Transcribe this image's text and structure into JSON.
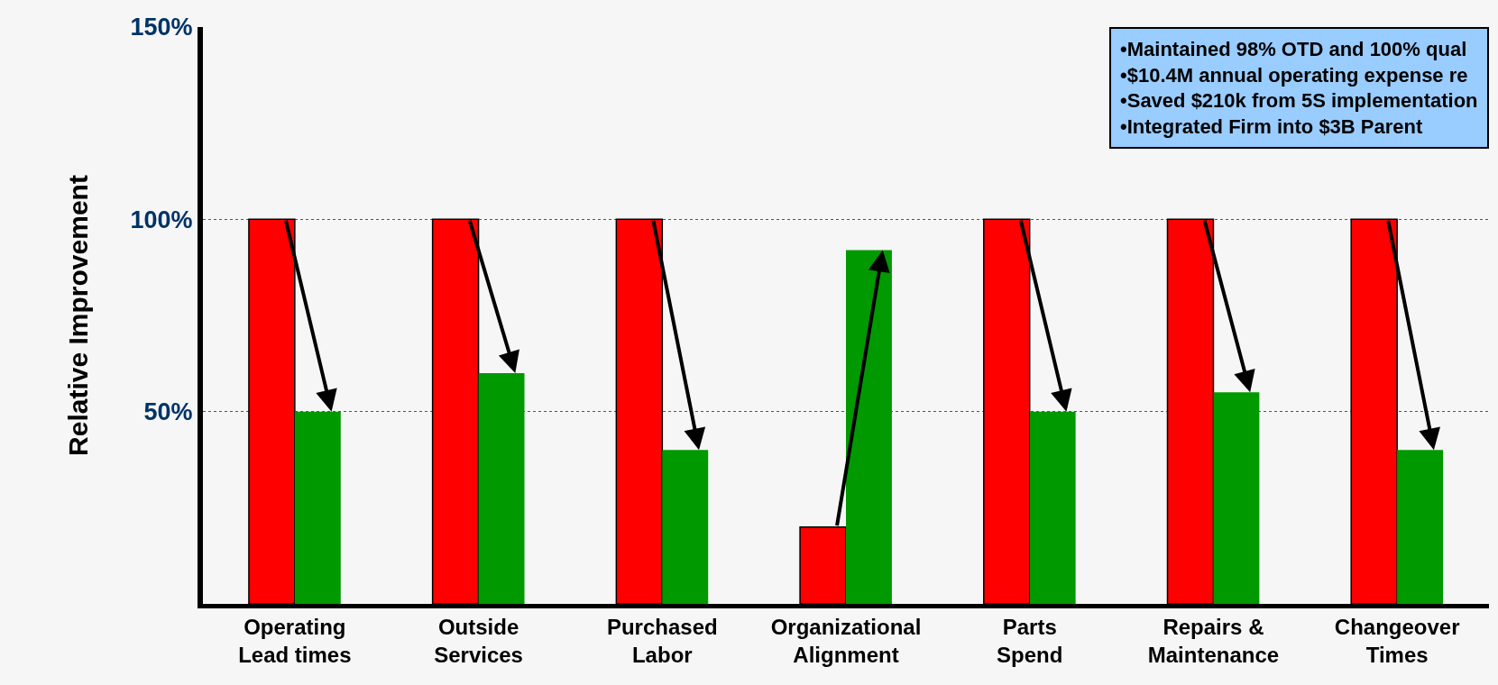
{
  "chart_data": {
    "type": "bar",
    "ylabel": "Relative Improvement",
    "categories": [
      "Operating\nLead times",
      "Outside\nServices",
      "Purchased\nLabor",
      "Organizational\nAlignment",
      "Parts\nSpend",
      "Repairs &\nMaintenance",
      "Changeover\nTimes"
    ],
    "series": [
      {
        "color": "#ff0000",
        "values": [
          100,
          100,
          100,
          20,
          100,
          100,
          100
        ]
      },
      {
        "color": "#009900",
        "values": [
          50,
          60,
          40,
          92,
          50,
          55,
          40
        ]
      }
    ],
    "ylim": [
      0,
      150
    ],
    "yticks": [
      {
        "value": 50,
        "label": "50%"
      },
      {
        "value": 100,
        "label": "100%"
      },
      {
        "value": 150,
        "label": "150%"
      }
    ],
    "grid": "y",
    "annotations": [
      "•Maintained 98% OTD and 100% qual",
      "•$10.4M annual operating expense re",
      "•Saved $210k from 5S implementation",
      "•Integrated Firm into $3B Parent"
    ]
  }
}
